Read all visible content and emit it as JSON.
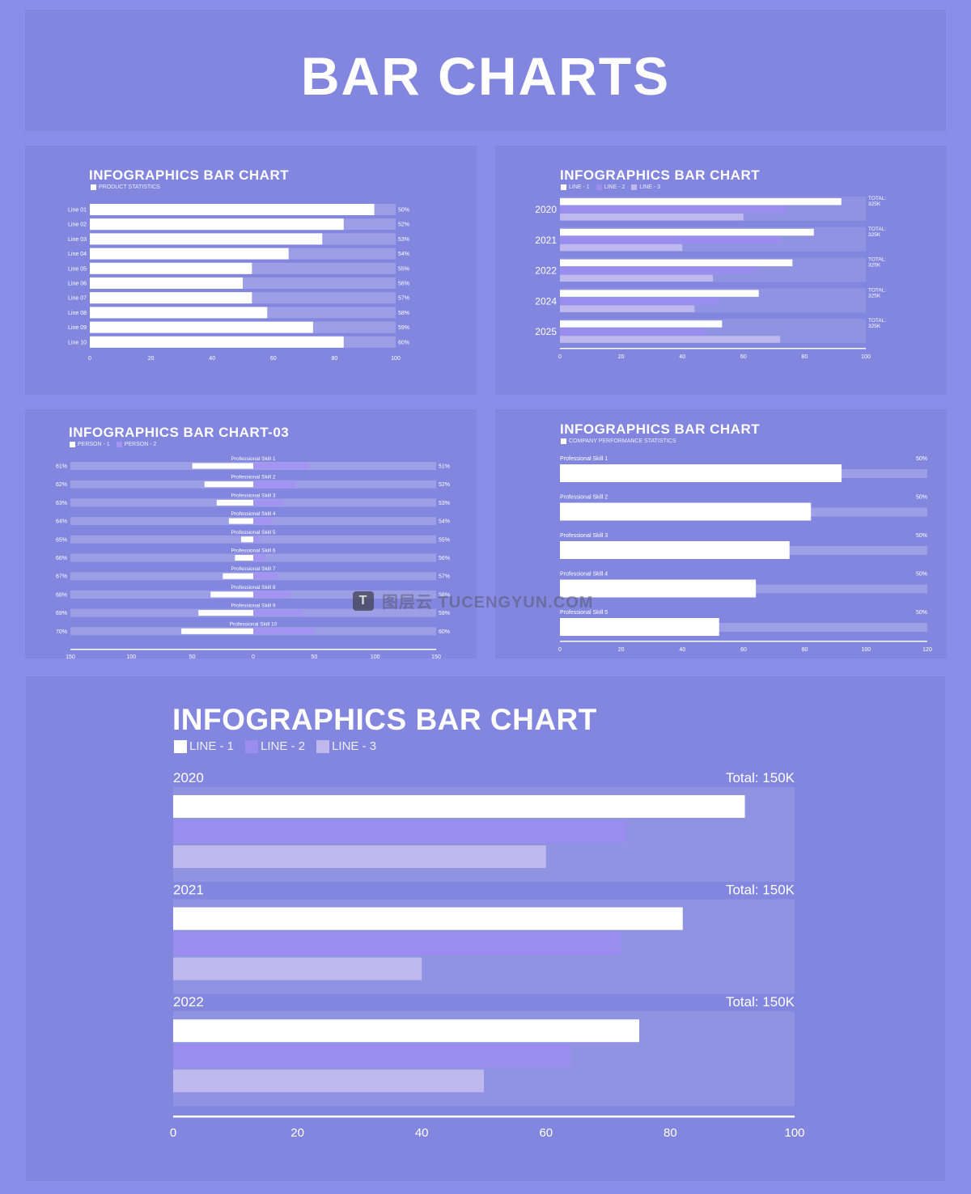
{
  "page_title": "BAR CHARTS",
  "colors": {
    "page_bg": "#8a8de9",
    "panel_bg": "#8286df",
    "track": "#9c9fe6",
    "line1": "#ffffff",
    "line2": "#9b8cf0",
    "line3": "#bfb8ef",
    "person2": "#a593f3"
  },
  "watermark": {
    "text": "图层云 TUCENGYUN.COM",
    "logo": "T"
  },
  "chart_data": [
    {
      "id": "chart1",
      "type": "bar",
      "orientation": "horizontal",
      "title": "INFOGRAPHICS BAR CHART",
      "legend": [
        "PRODUCT STATISTICS"
      ],
      "categories": [
        "Line 01",
        "Line 02",
        "Line 03",
        "Line 04",
        "Line 05",
        "Line 06",
        "Line 07",
        "Line 08",
        "Line 09",
        "Line 10"
      ],
      "values": [
        93,
        83,
        76,
        65,
        53,
        50,
        53,
        58,
        73,
        83
      ],
      "percent_labels": [
        "50%",
        "52%",
        "53%",
        "54%",
        "55%",
        "56%",
        "57%",
        "58%",
        "59%",
        "60%"
      ],
      "xlim": [
        0,
        100
      ],
      "xticks": [
        0,
        20,
        40,
        60,
        80,
        100
      ]
    },
    {
      "id": "chart2",
      "type": "bar",
      "orientation": "horizontal",
      "title": "INFOGRAPHICS BAR CHART",
      "legend": [
        "LINE - 1",
        "LINE - 2",
        "LINE - 3"
      ],
      "categories": [
        "2020",
        "2021",
        "2022",
        "2024",
        "2025"
      ],
      "series": [
        {
          "name": "LINE - 1",
          "values": [
            92,
            83,
            76,
            65,
            53
          ]
        },
        {
          "name": "LINE - 2",
          "values": [
            74,
            72,
            64,
            52,
            48
          ]
        },
        {
          "name": "LINE - 3",
          "values": [
            60,
            40,
            50,
            44,
            72
          ]
        }
      ],
      "totals": [
        "TOTAL: 325K",
        "TOTAL: 325K",
        "TOTAL: 325K",
        "TOTAL: 325K",
        "TOTAL: 325K"
      ],
      "xlim": [
        0,
        100
      ],
      "xticks": [
        0,
        20,
        40,
        60,
        80,
        100
      ]
    },
    {
      "id": "chart3",
      "type": "bar",
      "orientation": "horizontal-diverging",
      "title": "INFOGRAPHICS BAR CHART-03",
      "legend": [
        "PERSON - 1",
        "PERSON - 2"
      ],
      "categories": [
        "Professional Skill 1",
        "Professional Skill 2",
        "Professional Skill 3",
        "Professional Skill 4",
        "Professional Skill 5",
        "Professional Skill 6",
        "Professional Skill 7",
        "Professional Skill 8",
        "Professional Skill 9",
        "Professional Skill 10"
      ],
      "series": [
        {
          "name": "PERSON - 1",
          "values": [
            -50,
            -40,
            -30,
            -20,
            -10,
            -15,
            -25,
            -35,
            -45,
            -59
          ]
        },
        {
          "name": "PERSON - 2",
          "values": [
            45,
            35,
            25,
            15,
            5,
            10,
            20,
            30,
            40,
            50
          ]
        }
      ],
      "left_labels": [
        "61%",
        "62%",
        "63%",
        "64%",
        "65%",
        "66%",
        "67%",
        "68%",
        "69%",
        "70%"
      ],
      "right_labels": [
        "51%",
        "52%",
        "53%",
        "54%",
        "55%",
        "56%",
        "57%",
        "58%",
        "59%",
        "60%"
      ],
      "xlim": [
        -150,
        150
      ],
      "xticks": [
        -150,
        -100,
        -50,
        0,
        50,
        100,
        150
      ],
      "xtick_labels": [
        "150",
        "100",
        "50",
        "0",
        "50",
        "100",
        "150"
      ]
    },
    {
      "id": "chart4",
      "type": "bar",
      "orientation": "horizontal",
      "title": "INFOGRAPHICS BAR CHART",
      "legend": [
        "COMPANY PERFORMANCE STATISTICS"
      ],
      "categories": [
        "Professional Skill 1",
        "Professional Skill 2",
        "Professional Skill 3",
        "Professional Skill 4",
        "Professional Skill 5"
      ],
      "values": [
        92,
        82,
        75,
        64,
        52
      ],
      "percent_labels": [
        "50%",
        "50%",
        "50%",
        "50%",
        "50%"
      ],
      "xlim": [
        0,
        120
      ],
      "xticks": [
        0,
        20,
        40,
        60,
        80,
        100,
        120
      ]
    },
    {
      "id": "chart5",
      "type": "bar",
      "orientation": "horizontal",
      "title": "INFOGRAPHICS BAR CHART",
      "legend": [
        "LINE - 1",
        "LINE - 2",
        "LINE - 3"
      ],
      "categories": [
        "2020",
        "2021",
        "2022"
      ],
      "series": [
        {
          "name": "LINE - 1",
          "values": [
            92,
            82,
            75
          ]
        },
        {
          "name": "LINE - 2",
          "values": [
            73,
            72,
            64
          ]
        },
        {
          "name": "LINE - 3",
          "values": [
            60,
            40,
            50
          ]
        }
      ],
      "totals": [
        "Total: 150K",
        "Total: 150K",
        "Total: 150K"
      ],
      "xlim": [
        0,
        100
      ],
      "xticks": [
        0,
        20,
        40,
        60,
        80,
        100
      ]
    }
  ]
}
